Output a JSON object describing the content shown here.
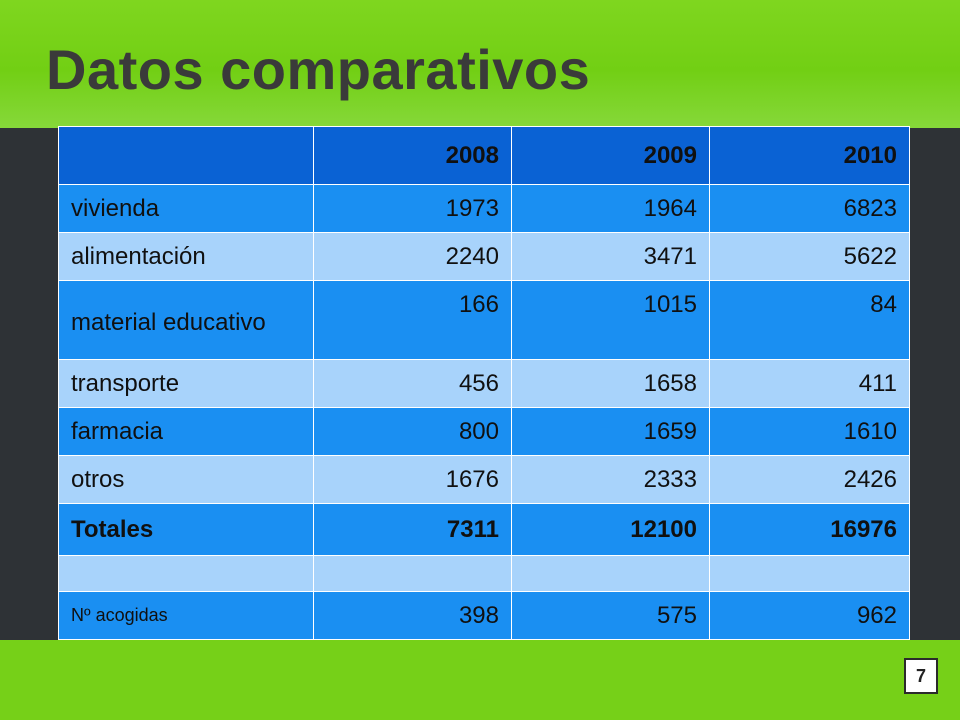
{
  "slide": {
    "title": "Datos comparativos",
    "page_number": "7"
  },
  "table": {
    "header": [
      "",
      "2008",
      "2009",
      "2010"
    ],
    "rows": [
      {
        "label": "vivienda",
        "values": [
          "1973",
          "1964",
          "6823"
        ]
      },
      {
        "label": "alimentación",
        "values": [
          "2240",
          "3471",
          "5622"
        ]
      },
      {
        "label": "material educativo",
        "values": [
          "166",
          "1015",
          "84"
        ]
      },
      {
        "label": "transporte",
        "values": [
          "456",
          "1658",
          "411"
        ]
      },
      {
        "label": "farmacia",
        "values": [
          "800",
          "1659",
          "1610"
        ]
      },
      {
        "label": "otros",
        "values": [
          "1676",
          "2333",
          "2426"
        ]
      },
      {
        "label": "Totales",
        "values": [
          "7311",
          "12100",
          "16976"
        ]
      },
      {
        "label": "",
        "values": [
          "",
          "",
          ""
        ]
      },
      {
        "label": "Nº acogidas",
        "values": [
          "398",
          "575",
          "962"
        ]
      }
    ]
  },
  "colors": {
    "header_bg": "#0a62d4",
    "row_dark": "#1a8ff2",
    "row_light": "#a8d3fb",
    "band_green": "#76d018",
    "background": "#2e3236"
  }
}
